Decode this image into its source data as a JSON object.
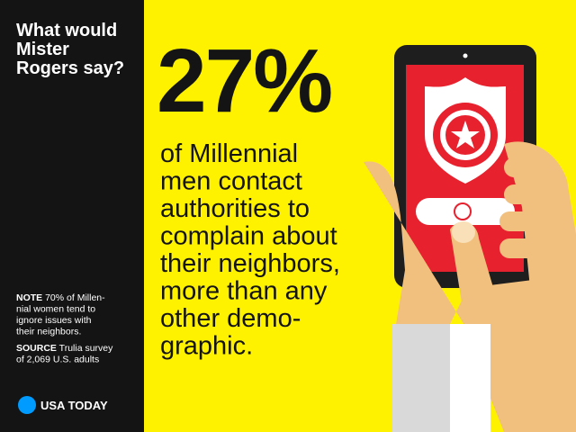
{
  "header": {
    "title_lines": [
      "What would",
      "Mister",
      "Rogers say?"
    ]
  },
  "headline": {
    "figure": "27%",
    "body_lines": [
      "of Millennial",
      "men contact",
      "authorities to",
      "complain about",
      "their neighbors,",
      "more than any",
      "other demo-",
      "graphic."
    ]
  },
  "note": {
    "label": "NOTE",
    "lines": [
      "70% of Millen-",
      "nial women tend to",
      "ignore issues with",
      "their neighbors."
    ]
  },
  "source": {
    "label": "SOURCE",
    "lines": [
      "Trulia survey",
      "of 2,069 U.S. adults"
    ]
  },
  "brand": {
    "name": "USA TODAY"
  }
}
